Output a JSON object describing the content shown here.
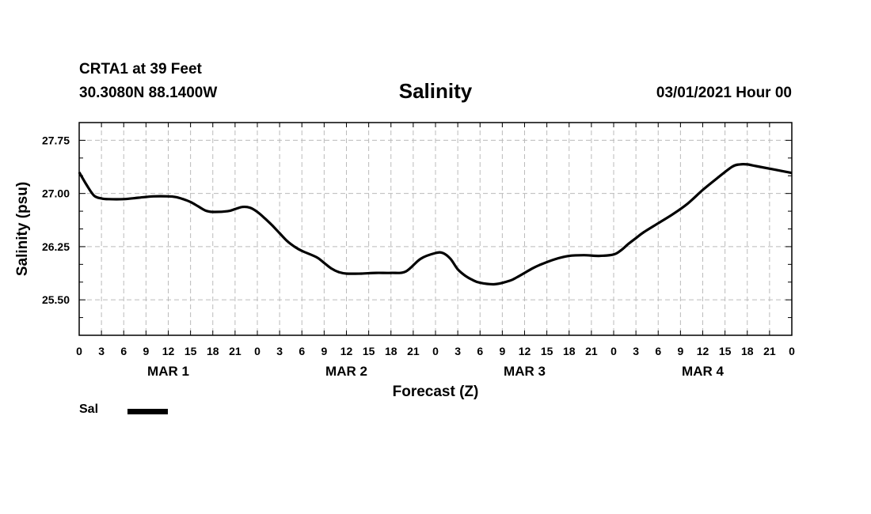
{
  "header": {
    "station": "CRTA1 at 39 Feet",
    "coordinates": "30.3080N 88.1400W",
    "title": "Salinity",
    "datetime": "03/01/2021 Hour 00"
  },
  "chart_data": {
    "type": "line",
    "title": "Salinity",
    "xlabel": "Forecast (Z)",
    "ylabel": "Salinity (psu)",
    "xlim": [
      0,
      96
    ],
    "ylim": [
      25.0,
      28.0
    ],
    "y_ticks": [
      "25.50",
      "26.25",
      "27.00",
      "27.75"
    ],
    "x_tick_labels": [
      "0",
      "3",
      "6",
      "9",
      "12",
      "15",
      "18",
      "21",
      "0",
      "3",
      "6",
      "9",
      "12",
      "15",
      "18",
      "21",
      "0",
      "3",
      "6",
      "9",
      "12",
      "15",
      "18",
      "21",
      "0",
      "3",
      "6",
      "9",
      "12",
      "15",
      "18",
      "21",
      "0"
    ],
    "day_labels": [
      "MAR 1",
      "MAR 2",
      "MAR 3",
      "MAR 4"
    ],
    "grid": true,
    "legend_position": "bottom-left",
    "color": "#000000",
    "series": [
      {
        "name": "Sal",
        "x": [
          0,
          1,
          2,
          3,
          4,
          6,
          8,
          10,
          12,
          13,
          14,
          15,
          16,
          17,
          18,
          20,
          21,
          22,
          23,
          24,
          25,
          26,
          27,
          28,
          29,
          30,
          32,
          33,
          34,
          35,
          36,
          38,
          40,
          42,
          44,
          46,
          48,
          49,
          50,
          51,
          52,
          53,
          54,
          56,
          58,
          59,
          60,
          61,
          62,
          64,
          66,
          68,
          70,
          72,
          73,
          74,
          75,
          76,
          78,
          80,
          82,
          84,
          86,
          88,
          89,
          90,
          91,
          92,
          94,
          96
        ],
        "y": [
          27.3,
          27.12,
          26.97,
          26.93,
          26.92,
          26.92,
          26.94,
          26.96,
          26.96,
          26.95,
          26.92,
          26.88,
          26.82,
          26.76,
          26.74,
          26.75,
          26.78,
          26.81,
          26.8,
          26.74,
          26.65,
          26.55,
          26.44,
          26.33,
          26.25,
          26.19,
          26.1,
          26.02,
          25.94,
          25.89,
          25.87,
          25.87,
          25.88,
          25.88,
          25.9,
          26.08,
          26.16,
          26.16,
          26.08,
          25.93,
          25.84,
          25.78,
          25.74,
          25.72,
          25.77,
          25.82,
          25.88,
          25.94,
          25.99,
          26.07,
          26.12,
          26.13,
          26.12,
          26.14,
          26.2,
          26.29,
          26.37,
          26.45,
          26.58,
          26.71,
          26.86,
          27.05,
          27.22,
          27.38,
          27.41,
          27.41,
          27.39,
          27.37,
          27.33,
          27.29
        ]
      }
    ]
  }
}
